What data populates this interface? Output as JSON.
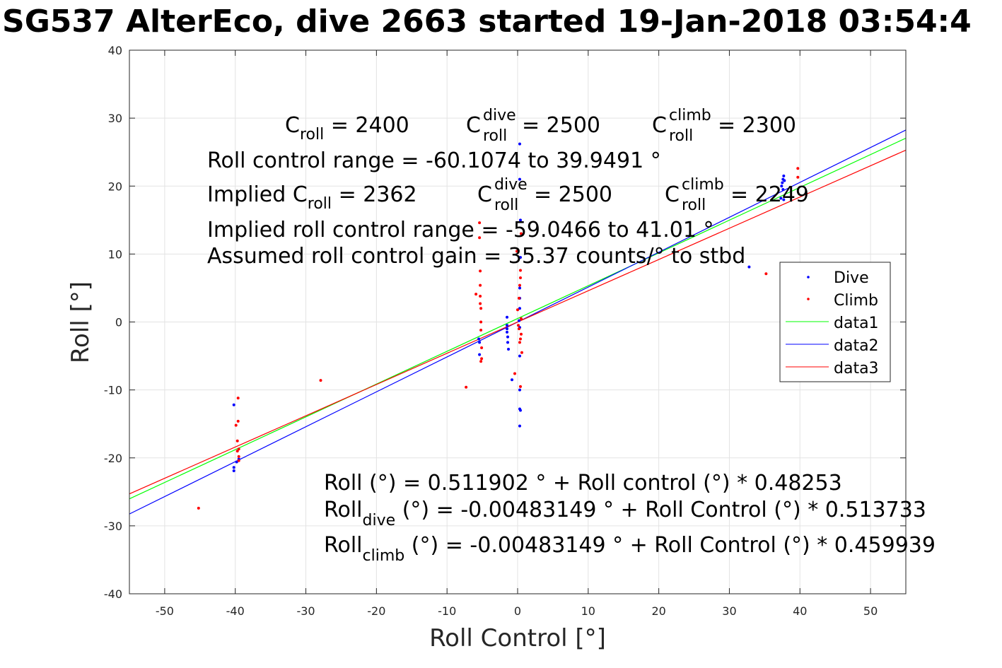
{
  "chart_data": {
    "type": "scatter",
    "title": "SG537 AlterEco, dive 2663 started 19-Jan-2018 03:54:4",
    "xlabel": "Roll Control [°]",
    "ylabel": "Roll [°]",
    "xlim": [
      -55,
      55
    ],
    "ylim": [
      -40,
      40
    ],
    "xticks": [
      -50,
      -40,
      -30,
      -20,
      -10,
      0,
      10,
      20,
      30,
      40,
      50
    ],
    "yticks": [
      -40,
      -30,
      -20,
      -10,
      0,
      10,
      20,
      30,
      40
    ],
    "grid": true,
    "legend_position": "right",
    "colors": {
      "dive": "#0000ff",
      "climb": "#ff0000",
      "data1": "#00ff00",
      "data2": "#0000ff",
      "data3": "#ff0000"
    },
    "series": [
      {
        "name": "Dive",
        "kind": "points",
        "color": "#0000ff",
        "points": [
          [
            -40.2,
            -12.2
          ],
          [
            -40.2,
            -21.4
          ],
          [
            -40.2,
            -21.9
          ],
          [
            -39.8,
            -20.6
          ],
          [
            -39.5,
            -20.2
          ],
          [
            -5.5,
            -2.5
          ],
          [
            -5.4,
            -3
          ],
          [
            -5.4,
            -4.8
          ],
          [
            -1.5,
            0.7
          ],
          [
            -1.5,
            -0.5
          ],
          [
            -1.5,
            -1
          ],
          [
            -1.5,
            -1.5
          ],
          [
            -1.4,
            -2.2
          ],
          [
            -1.4,
            -3
          ],
          [
            -1.3,
            -4
          ],
          [
            -0.8,
            -8.5
          ],
          [
            0.2,
            0.2
          ],
          [
            0.3,
            -0.8
          ],
          [
            0.3,
            2
          ],
          [
            0.3,
            3.5
          ],
          [
            0.3,
            5
          ],
          [
            0.3,
            -5
          ],
          [
            0.3,
            -10
          ],
          [
            0.3,
            -12.8
          ],
          [
            0.3,
            -15.3
          ],
          [
            0.3,
            21
          ],
          [
            0.3,
            26.2
          ],
          [
            0.4,
            -13
          ],
          [
            0.4,
            15
          ],
          [
            0.4,
            9.5
          ],
          [
            32.8,
            8.1
          ],
          [
            37.3,
            18.2
          ],
          [
            37.4,
            20
          ],
          [
            37.5,
            20.5
          ],
          [
            37.6,
            21
          ],
          [
            37.6,
            19.5
          ],
          [
            37.7,
            21.5
          ],
          [
            37.7,
            18
          ],
          [
            37.8,
            20.8
          ]
        ]
      },
      {
        "name": "Climb",
        "kind": "points",
        "color": "#ff0000",
        "points": [
          [
            -45.2,
            -27.4
          ],
          [
            -39.9,
            -15.2
          ],
          [
            -39.7,
            -19
          ],
          [
            -39.7,
            -17.5
          ],
          [
            -39.6,
            -11.2
          ],
          [
            -39.6,
            -14.6
          ],
          [
            -39.5,
            -18.7
          ],
          [
            -39.5,
            -19.8
          ],
          [
            -39.5,
            -20.4
          ],
          [
            -27.9,
            -8.6
          ],
          [
            -7.3,
            -9.6
          ],
          [
            -5.9,
            4.1
          ],
          [
            -5.4,
            14.6
          ],
          [
            -5.4,
            12.4
          ],
          [
            -5.3,
            7.5
          ],
          [
            -5.3,
            5.4
          ],
          [
            -5.3,
            3.8
          ],
          [
            -5.3,
            2.7
          ],
          [
            -5.2,
            2
          ],
          [
            -5.2,
            0
          ],
          [
            -5.2,
            -1.2
          ],
          [
            -5.2,
            -5.8
          ],
          [
            -5.1,
            -3.8
          ],
          [
            -5.1,
            -5.4
          ],
          [
            -0.4,
            -7.6
          ],
          [
            -0.1,
            10.4
          ],
          [
            0,
            1.8
          ],
          [
            0.1,
            -0.5
          ],
          [
            0.2,
            -1
          ],
          [
            0.2,
            3.5
          ],
          [
            0.3,
            5.4
          ],
          [
            0.3,
            -3
          ],
          [
            0.4,
            6.5
          ],
          [
            0.4,
            7.6
          ],
          [
            0.4,
            -2.5
          ],
          [
            0.4,
            -9.5
          ],
          [
            0.5,
            0.5
          ],
          [
            0.5,
            -1.8
          ],
          [
            0.5,
            13
          ],
          [
            0.6,
            -4.5
          ],
          [
            35.2,
            7.1
          ],
          [
            39.7,
            22.6
          ],
          [
            39.7,
            21.3
          ]
        ]
      },
      {
        "name": "data1",
        "kind": "line",
        "color": "#00ff00",
        "x": [
          -55,
          55
        ],
        "y": [
          -26.03,
          27.05
        ]
      },
      {
        "name": "data2",
        "kind": "line",
        "color": "#0000ff",
        "x": [
          -55,
          55
        ],
        "y": [
          -28.26,
          28.25
        ]
      },
      {
        "name": "data3",
        "kind": "line",
        "color": "#ff0000",
        "x": [
          -55,
          55
        ],
        "y": [
          -25.3,
          25.29
        ]
      }
    ],
    "annotations": {
      "c_roll": {
        "base": "C",
        "sub": "roll",
        "value": " = 2400"
      },
      "c_roll_dive": {
        "base": "C",
        "sup": "dive",
        "sub": "roll",
        "value": " = 2500"
      },
      "c_roll_climb": {
        "base": "C",
        "sup": "climb",
        "sub": "roll",
        "value": " = 2300"
      },
      "roll_control_range": "Roll control range = -60.1074 to 39.9491 °",
      "implied_c_roll": {
        "prefix": "Implied C",
        "sub": "roll",
        "value": " = 2362"
      },
      "implied_c_roll_dive": {
        "base": "C",
        "sup": "dive",
        "sub": "roll",
        "value": " = 2500"
      },
      "implied_c_roll_climb": {
        "base": "C",
        "sup": "climb",
        "sub": "roll",
        "value": " = 2249"
      },
      "implied_range": "Implied roll control range = -59.0466 to 41.01 °",
      "gain": "Assumed roll control gain = 35.37 counts/° to stbd",
      "fit_all": "Roll (°) = 0.511902 ° + Roll control (°) * 0.48253",
      "fit_dive": {
        "base": "Roll",
        "sub": "dive",
        "rest": " (°) = -0.00483149 ° + Roll Control (°) * 0.513733"
      },
      "fit_climb": {
        "base": "Roll",
        "sub": "climb",
        "rest": " (°) = -0.00483149 ° + Roll Control (°) * 0.459939"
      }
    }
  }
}
